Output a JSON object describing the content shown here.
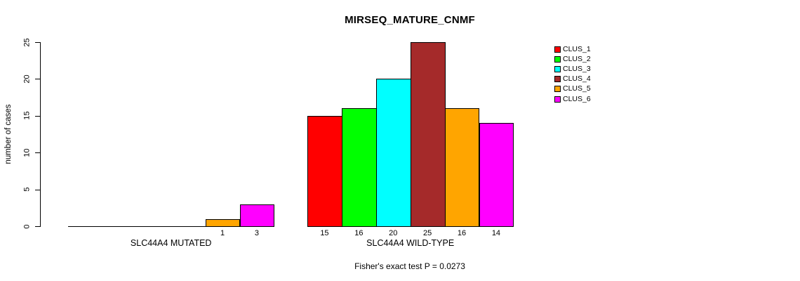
{
  "page": {
    "background": "#FFFFFF"
  },
  "chart_data": {
    "type": "bar",
    "title": "MIRSEQ_MATURE_CNMF",
    "ylabel": "number of cases",
    "xlabel": "",
    "ylim": [
      0,
      25
    ],
    "yticks": [
      0,
      5,
      10,
      15,
      20,
      25
    ],
    "grid": false,
    "legend_position": "right",
    "legend": [
      {
        "label": "CLUS_1",
        "color": "#FF0000"
      },
      {
        "label": "CLUS_2",
        "color": "#00FF00"
      },
      {
        "label": "CLUS_3",
        "color": "#00FFFF"
      },
      {
        "label": "CLUS_4",
        "color": "#A52A2A"
      },
      {
        "label": "CLUS_5",
        "color": "#FFA500"
      },
      {
        "label": "CLUS_6",
        "color": "#FF00FF"
      }
    ],
    "groups": [
      {
        "label": "SLC44A4 MUTATED",
        "values": [
          0,
          0,
          0,
          0,
          1,
          3
        ],
        "bar_labels": [
          "",
          "",
          "",
          "",
          "1",
          "3"
        ]
      },
      {
        "label": "SLC44A4 WILD-TYPE",
        "values": [
          15,
          16,
          20,
          25,
          16,
          14
        ],
        "bar_labels": [
          "15",
          "16",
          "20",
          "25",
          "16",
          "14"
        ]
      }
    ],
    "annotation": "Fisher's exact test P = 0.0273"
  }
}
